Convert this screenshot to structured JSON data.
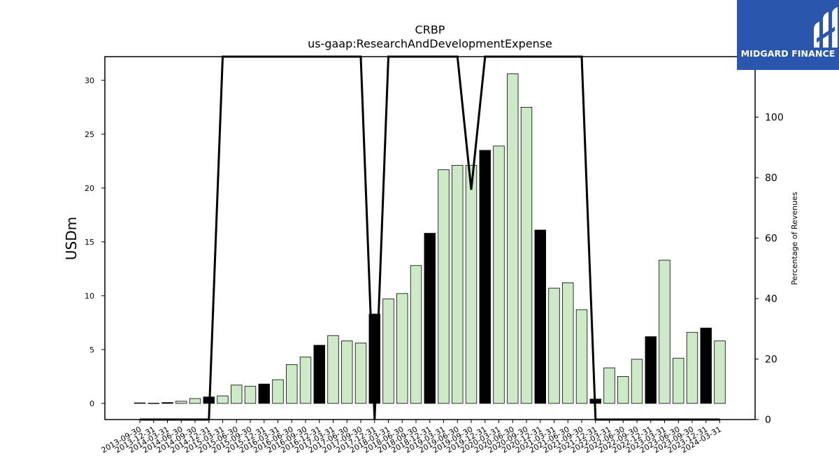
{
  "chart_data": {
    "type": "bar",
    "title": "CRBP",
    "subtitle": "us-gaap:ResearchAndDevelopmentExpense",
    "ylabel": "USDm",
    "y2label": "Percentage of Revenues",
    "ylim": [
      -1.5,
      32.2
    ],
    "y2lim": [
      0,
      120
    ],
    "yticks": [
      0,
      5,
      10,
      15,
      20,
      25,
      30
    ],
    "y2ticks": [
      0,
      20,
      40,
      60,
      80,
      100
    ],
    "categories": [
      "2013-09-30",
      "2013-12-31",
      "2014-03-31",
      "2014-06-30",
      "2014-09-30",
      "2014-12-31",
      "2015-03-31",
      "2015-06-30",
      "2015-09-30",
      "2015-12-31",
      "2016-03-31",
      "2016-06-30",
      "2016-09-30",
      "2016-12-31",
      "2017-03-31",
      "2017-06-30",
      "2017-09-30",
      "2017-12-31",
      "2018-03-31",
      "2018-06-30",
      "2018-09-30",
      "2018-12-31",
      "2019-03-31",
      "2019-06-30",
      "2019-09-30",
      "2019-12-31",
      "2020-03-31",
      "2020-06-30",
      "2020-09-30",
      "2020-12-31",
      "2021-03-31",
      "2021-06-30",
      "2021-09-30",
      "2021-12-31",
      "2022-03-31",
      "2022-06-30",
      "2022-09-30",
      "2022-12-31",
      "2023-03-31",
      "2023-06-30",
      "2023-09-30",
      "2023-12-31",
      "2024-03-31"
    ],
    "values": [
      0.05,
      0.02,
      0.08,
      0.2,
      0.45,
      0.6,
      0.7,
      1.7,
      1.6,
      1.8,
      2.2,
      3.6,
      4.3,
      5.4,
      6.3,
      5.8,
      5.6,
      8.3,
      9.7,
      10.2,
      12.8,
      15.8,
      21.7,
      22.1,
      22.1,
      23.5,
      23.9,
      30.6,
      27.5,
      16.1,
      10.7,
      11.2,
      8.7,
      0.4,
      3.3,
      2.5,
      4.1,
      6.2,
      13.3,
      4.2,
      6.6,
      7.0,
      5.8
    ],
    "highlight": [
      false,
      false,
      true,
      false,
      false,
      true,
      false,
      false,
      false,
      true,
      false,
      false,
      false,
      true,
      false,
      false,
      false,
      true,
      false,
      false,
      false,
      true,
      false,
      false,
      false,
      true,
      false,
      false,
      false,
      true,
      false,
      false,
      false,
      true,
      false,
      false,
      false,
      true,
      false,
      false,
      false,
      true,
      false
    ],
    "colors": {
      "bar": "#cdeac7",
      "highlight": "#000000",
      "edge": "#000000",
      "line": "#000000"
    },
    "line_series": {
      "name": "",
      "axis": "right",
      "values": [
        0,
        0,
        0,
        0,
        0,
        0,
        120,
        120,
        120,
        120,
        120,
        120,
        120,
        120,
        120,
        120,
        120,
        0,
        120,
        120,
        120,
        120,
        120,
        120,
        76,
        120,
        120,
        120,
        120,
        120,
        120,
        120,
        120,
        0,
        0,
        0,
        0,
        0,
        0,
        0,
        0,
        0,
        0
      ]
    },
    "grid": false,
    "legend": "none"
  },
  "logo": {
    "text": "MIDGARD FINANCE",
    "color": "#2a57ad"
  }
}
